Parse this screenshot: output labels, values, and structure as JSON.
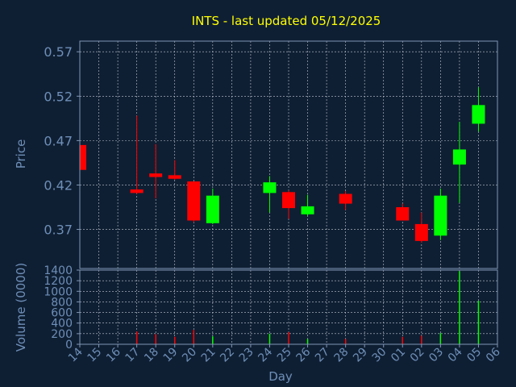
{
  "colors": {
    "background": "#0f1f33",
    "title": "#ffff00",
    "axis_text": "#6e8fb8",
    "frame": "#7f96b5",
    "grid": "#c0c8d4",
    "up": "#00ff00",
    "down": "#ff0000"
  },
  "chart_data": {
    "type": "candlestick",
    "title": "INTS - last updated 05/12/2025",
    "xlabel": "Day",
    "ylabel_price": "Price",
    "ylabel_volume": "Volume (0000)",
    "x_tick_labels": [
      "14",
      "15",
      "16",
      "17",
      "18",
      "19",
      "20",
      "21",
      "22",
      "23",
      "24",
      "25",
      "26",
      "27",
      "28",
      "29",
      "30",
      "01",
      "02",
      "03",
      "04",
      "05",
      "06"
    ],
    "price_ticks": [
      0.37,
      0.42,
      0.47,
      0.52,
      0.57
    ],
    "price_tick_labels": [
      "0.37",
      "0.42",
      "0.47",
      "0.52",
      "0.57"
    ],
    "price_range": [
      0.326,
      0.582
    ],
    "volume_ticks": [
      0,
      200,
      400,
      600,
      800,
      1000,
      1200,
      1400
    ],
    "volume_tick_labels": [
      "0",
      "200",
      "400",
      "600",
      "800",
      "1000",
      "1200",
      "1400"
    ],
    "volume_range": [
      0,
      1400
    ],
    "grid": true,
    "candles": [
      {
        "day": "14",
        "open": 0.465,
        "high": 0.466,
        "low": 0.437,
        "close": 0.437,
        "volume": 0
      },
      {
        "day": "17",
        "open": 0.415,
        "high": 0.498,
        "low": 0.41,
        "close": 0.411,
        "volume": 240
      },
      {
        "day": "18",
        "open": 0.433,
        "high": 0.466,
        "low": 0.405,
        "close": 0.429,
        "volume": 190
      },
      {
        "day": "19",
        "open": 0.431,
        "high": 0.448,
        "low": 0.426,
        "close": 0.427,
        "volume": 140
      },
      {
        "day": "20",
        "open": 0.424,
        "high": 0.424,
        "low": 0.378,
        "close": 0.38,
        "volume": 270
      },
      {
        "day": "21",
        "open": 0.377,
        "high": 0.416,
        "low": 0.376,
        "close": 0.408,
        "volume": 150
      },
      {
        "day": "24",
        "open": 0.411,
        "high": 0.43,
        "low": 0.389,
        "close": 0.423,
        "volume": 200
      },
      {
        "day": "25",
        "open": 0.412,
        "high": 0.414,
        "low": 0.382,
        "close": 0.394,
        "volume": 230
      },
      {
        "day": "26",
        "open": 0.387,
        "high": 0.409,
        "low": 0.385,
        "close": 0.396,
        "volume": 100
      },
      {
        "day": "28",
        "open": 0.41,
        "high": 0.413,
        "low": 0.392,
        "close": 0.399,
        "volume": 100
      },
      {
        "day": "01",
        "open": 0.395,
        "high": 0.399,
        "low": 0.38,
        "close": 0.38,
        "volume": 140
      },
      {
        "day": "02",
        "open": 0.376,
        "high": 0.389,
        "low": 0.355,
        "close": 0.357,
        "volume": 160
      },
      {
        "day": "03",
        "open": 0.363,
        "high": 0.416,
        "low": 0.358,
        "close": 0.408,
        "volume": 210
      },
      {
        "day": "04",
        "open": 0.443,
        "high": 0.491,
        "low": 0.4,
        "close": 0.46,
        "volume": 1380
      },
      {
        "day": "05",
        "open": 0.489,
        "high": 0.53,
        "low": 0.48,
        "close": 0.51,
        "volume": 820
      }
    ]
  }
}
